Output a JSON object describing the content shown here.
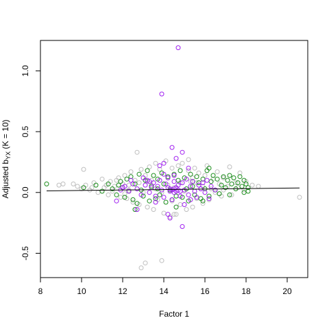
{
  "chart_data": {
    "type": "scatter",
    "title": "",
    "xlabel": "Factor 1",
    "ylabel": {
      "main": "Adjusted b",
      "subscript": "YX",
      "suffix": " (K = 10)"
    },
    "xlim": [
      8,
      21
    ],
    "ylim": [
      -0.7,
      1.25
    ],
    "x_ticks": [
      8,
      10,
      12,
      14,
      16,
      18,
      20
    ],
    "y_ticks": [
      -0.5,
      0.0,
      0.5,
      1.0
    ],
    "x_tick_labels": [
      "8",
      "10",
      "12",
      "14",
      "16",
      "18",
      "20"
    ],
    "y_tick_labels": [
      "-0.5",
      "0.0",
      "0.5",
      "1.0"
    ],
    "grid": false,
    "marker": "open-circle",
    "series": [
      {
        "color": "#bebebe",
        "points": [
          [
            8.9,
            0.06
          ],
          [
            9.1,
            0.07
          ],
          [
            9.6,
            0.07
          ],
          [
            9.8,
            0.05
          ],
          [
            10.0,
            0.03
          ],
          [
            10.1,
            0.19
          ],
          [
            10.2,
            0.06
          ],
          [
            10.4,
            0.02
          ],
          [
            10.6,
            0.08
          ],
          [
            10.8,
            0.0
          ],
          [
            11.0,
            0.11
          ],
          [
            11.1,
            0.04
          ],
          [
            11.3,
            -0.02
          ],
          [
            11.4,
            0.09
          ],
          [
            11.6,
            0.05
          ],
          [
            11.8,
            0.12
          ],
          [
            11.9,
            -0.04
          ],
          [
            12.0,
            0.07
          ],
          [
            12.1,
            0.14
          ],
          [
            12.2,
            -0.05
          ],
          [
            12.3,
            0.02
          ],
          [
            12.4,
            0.17
          ],
          [
            12.5,
            -0.08
          ],
          [
            12.6,
            0.1
          ],
          [
            12.7,
            0.33
          ],
          [
            12.8,
            -0.1
          ],
          [
            12.9,
            0.19
          ],
          [
            13.0,
            0.0
          ],
          [
            13.1,
            0.14
          ],
          [
            13.2,
            -0.12
          ],
          [
            13.3,
            0.21
          ],
          [
            13.4,
            0.06
          ],
          [
            13.5,
            -0.14
          ],
          [
            13.6,
            0.24
          ],
          [
            13.7,
            -0.06
          ],
          [
            13.8,
            0.19
          ],
          [
            13.9,
            0.0
          ],
          [
            14.0,
            -0.17
          ],
          [
            14.1,
            0.26
          ],
          [
            14.2,
            0.12
          ],
          [
            14.3,
            -0.2
          ],
          [
            14.4,
            0.2
          ],
          [
            14.5,
            0.04
          ],
          [
            14.6,
            -0.18
          ],
          [
            14.7,
            0.22
          ],
          [
            14.8,
            -0.1
          ],
          [
            14.9,
            0.24
          ],
          [
            15.0,
            0.01
          ],
          [
            15.1,
            -0.14
          ],
          [
            15.2,
            0.18
          ],
          [
            15.3,
            0.09
          ],
          [
            15.4,
            -0.12
          ],
          [
            15.5,
            0.2
          ],
          [
            15.6,
            -0.05
          ],
          [
            15.7,
            0.16
          ],
          [
            15.8,
            0.03
          ],
          [
            15.9,
            -0.09
          ],
          [
            16.0,
            0.14
          ],
          [
            16.1,
            0.22
          ],
          [
            16.2,
            -0.06
          ],
          [
            16.4,
            0.11
          ],
          [
            16.5,
            0.0
          ],
          [
            16.6,
            0.17
          ],
          [
            16.8,
            -0.03
          ],
          [
            16.9,
            0.12
          ],
          [
            17.1,
            0.05
          ],
          [
            17.2,
            0.21
          ],
          [
            17.3,
            -0.02
          ],
          [
            17.5,
            0.08
          ],
          [
            17.7,
            0.16
          ],
          [
            17.9,
            0.02
          ],
          [
            18.0,
            0.09
          ],
          [
            18.3,
            0.06
          ],
          [
            18.6,
            0.05
          ],
          [
            12.9,
            -0.62
          ],
          [
            13.1,
            -0.58
          ],
          [
            13.9,
            -0.56
          ],
          [
            14.5,
            -0.18
          ],
          [
            20.6,
            -0.04
          ],
          [
            15.2,
            0.27
          ],
          [
            11.7,
            0.1
          ],
          [
            12.3,
            0.06
          ],
          [
            13.4,
            0.1
          ],
          [
            14.2,
            0.06
          ],
          [
            15.6,
            0.08
          ],
          [
            16.7,
            0.07
          ],
          [
            12.1,
            -0.01
          ],
          [
            13.6,
            0.03
          ],
          [
            14.8,
            0.08
          ],
          [
            15.9,
            0.05
          ],
          [
            11.5,
            0.01
          ],
          [
            16.3,
            0.03
          ],
          [
            12.8,
            0.08
          ],
          [
            14.4,
            -0.07
          ],
          [
            15.4,
            0.12
          ],
          [
            13.2,
            0.09
          ],
          [
            16.9,
            0.02
          ],
          [
            11.2,
            0.06
          ],
          [
            17.6,
            0.04
          ],
          [
            10.5,
            0.04
          ]
        ]
      },
      {
        "color": "#1a8c1a",
        "points": [
          [
            8.3,
            0.07
          ],
          [
            10.1,
            0.04
          ],
          [
            10.7,
            0.06
          ],
          [
            11.0,
            0.01
          ],
          [
            11.3,
            0.07
          ],
          [
            11.5,
            0.03
          ],
          [
            11.7,
            -0.02
          ],
          [
            11.9,
            0.09
          ],
          [
            12.0,
            0.04
          ],
          [
            12.1,
            -0.04
          ],
          [
            12.2,
            0.11
          ],
          [
            12.3,
            0.01
          ],
          [
            12.4,
            0.13
          ],
          [
            12.5,
            -0.06
          ],
          [
            12.6,
            0.07
          ],
          [
            12.7,
            -0.09
          ],
          [
            12.8,
            0.15
          ],
          [
            12.9,
            0.02
          ],
          [
            13.0,
            -0.03
          ],
          [
            13.1,
            0.1
          ],
          [
            13.2,
            0.18
          ],
          [
            13.3,
            -0.07
          ],
          [
            13.4,
            0.05
          ],
          [
            13.5,
            0.14
          ],
          [
            13.6,
            -0.05
          ],
          [
            13.7,
            0.11
          ],
          [
            13.8,
            -0.02
          ],
          [
            13.9,
            0.16
          ],
          [
            14.0,
            0.07
          ],
          [
            14.1,
            -0.08
          ],
          [
            14.2,
            0.13
          ],
          [
            14.3,
            0.02
          ],
          [
            14.4,
            -0.06
          ],
          [
            14.5,
            0.15
          ],
          [
            14.6,
            -0.03
          ],
          [
            14.7,
            0.1
          ],
          [
            14.8,
            0.18
          ],
          [
            14.9,
            -0.04
          ],
          [
            15.0,
            0.12
          ],
          [
            15.1,
            0.03
          ],
          [
            15.2,
            -0.07
          ],
          [
            15.3,
            0.15
          ],
          [
            15.4,
            0.05
          ],
          [
            15.5,
            -0.02
          ],
          [
            15.6,
            0.13
          ],
          [
            15.7,
            0.08
          ],
          [
            15.8,
            -0.05
          ],
          [
            15.9,
            0.11
          ],
          [
            16.0,
            0.03
          ],
          [
            16.1,
            0.18
          ],
          [
            16.2,
            -0.03
          ],
          [
            16.3,
            0.09
          ],
          [
            16.4,
            0.14
          ],
          [
            16.5,
            0.02
          ],
          [
            16.6,
            0.11
          ],
          [
            16.7,
            -0.01
          ],
          [
            16.8,
            0.06
          ],
          [
            16.9,
            0.13
          ],
          [
            17.0,
            0.04
          ],
          [
            17.1,
            0.1
          ],
          [
            17.2,
            -0.02
          ],
          [
            17.3,
            0.07
          ],
          [
            17.4,
            0.12
          ],
          [
            17.5,
            0.03
          ],
          [
            17.6,
            0.08
          ],
          [
            17.7,
            0.13
          ],
          [
            17.8,
            0.05
          ],
          [
            17.9,
            0.0
          ],
          [
            18.0,
            0.07
          ],
          [
            18.1,
            0.04
          ],
          [
            12.6,
            -0.14
          ],
          [
            14.6,
            -0.12
          ],
          [
            15.9,
            -0.07
          ],
          [
            16.2,
            0.2
          ],
          [
            17.2,
            0.14
          ],
          [
            17.9,
            0.1
          ],
          [
            18.1,
            0.01
          ],
          [
            11.8,
            0.06
          ],
          [
            13.7,
            0.03
          ],
          [
            15.4,
            0.09
          ]
        ]
      },
      {
        "color": "#a020f0",
        "points": [
          [
            14.7,
            1.19
          ],
          [
            13.9,
            0.81
          ],
          [
            14.4,
            0.37
          ],
          [
            14.9,
            0.33
          ],
          [
            14.6,
            0.28
          ],
          [
            13.8,
            0.22
          ],
          [
            14.0,
            0.24
          ],
          [
            15.2,
            0.2
          ],
          [
            11.7,
            -0.07
          ],
          [
            12.7,
            -0.14
          ],
          [
            14.2,
            -0.18
          ],
          [
            14.9,
            -0.28
          ],
          [
            14.3,
            -0.21
          ],
          [
            16.2,
            -0.05
          ],
          [
            12.1,
            0.05
          ],
          [
            12.3,
            0.01
          ],
          [
            12.5,
            0.07
          ],
          [
            12.7,
            0.03
          ],
          [
            12.9,
            -0.02
          ],
          [
            13.1,
            0.06
          ],
          [
            13.2,
            0.1
          ],
          [
            13.3,
            0.0
          ],
          [
            13.4,
            0.04
          ],
          [
            13.5,
            0.08
          ],
          [
            13.6,
            -0.03
          ],
          [
            13.7,
            0.05
          ],
          [
            13.8,
            0.1
          ],
          [
            13.9,
            0.02
          ],
          [
            14.0,
            -0.04
          ],
          [
            14.1,
            0.07
          ],
          [
            14.2,
            0.12
          ],
          [
            14.3,
            0.03
          ],
          [
            14.4,
            -0.06
          ],
          [
            14.5,
            0.09
          ],
          [
            14.6,
            0.01
          ],
          [
            14.7,
            0.06
          ],
          [
            14.8,
            -0.03
          ],
          [
            14.9,
            0.08
          ],
          [
            15.0,
            0.02
          ],
          [
            15.1,
            0.11
          ],
          [
            15.2,
            -0.02
          ],
          [
            15.3,
            0.05
          ],
          [
            15.4,
            0.09
          ],
          [
            15.5,
            0.01
          ],
          [
            15.6,
            -0.04
          ],
          [
            15.7,
            0.06
          ],
          [
            15.8,
            0.03
          ],
          [
            15.9,
            0.08
          ],
          [
            16.0,
            0.0
          ],
          [
            16.3,
            0.05
          ],
          [
            13.0,
            0.12
          ],
          [
            14.5,
            0.14
          ],
          [
            13.6,
            -0.08
          ],
          [
            15.0,
            -0.1
          ],
          [
            12.4,
            0.1
          ],
          [
            16.1,
            0.1
          ],
          [
            11.9,
            0.02
          ],
          [
            14.0,
            0.15
          ],
          [
            15.3,
            -0.06
          ],
          [
            13.3,
            0.09
          ],
          [
            16.5,
            0.02
          ],
          [
            12.0,
            0.04
          ],
          [
            14.5,
            0.03
          ],
          [
            14.4,
            0.02
          ],
          [
            14.6,
            0.04
          ],
          [
            14.3,
            0.01
          ],
          [
            14.7,
            0.02
          ],
          [
            14.5,
            0.0
          ],
          [
            14.2,
            0.04
          ],
          [
            14.8,
            0.01
          ]
        ]
      }
    ],
    "regression_line": {
      "color": "#000000",
      "from": [
        8.3,
        0.013
      ],
      "to": [
        20.6,
        0.037
      ]
    }
  }
}
